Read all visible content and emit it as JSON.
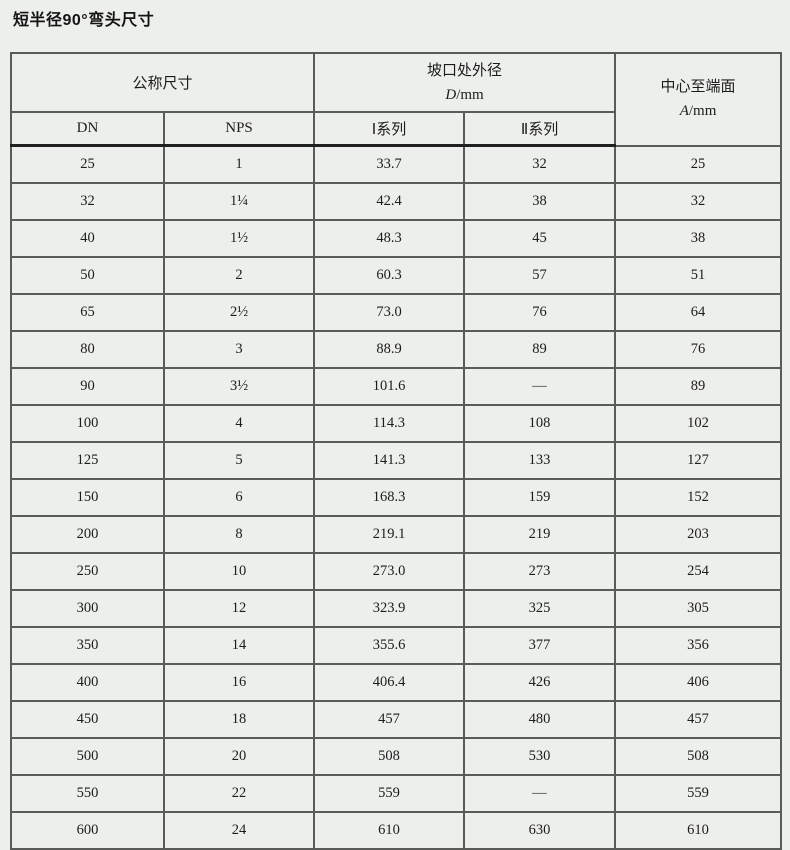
{
  "page": {
    "title": "短半径90°弯头尺寸"
  },
  "table": {
    "header": {
      "nominal_size": "公称尺寸",
      "dn": "DN",
      "nps": "NPS",
      "od_title": "坡口处外径",
      "od_var": "D",
      "od_unit": "/mm",
      "series1": "Ⅰ系列",
      "series2": "Ⅱ系列",
      "center_title": "中心至端面",
      "center_var": "A",
      "center_unit": "/mm"
    },
    "columns": [
      "DN",
      "NPS",
      "Ⅰ系列",
      "Ⅱ系列",
      "A/mm"
    ],
    "rows": [
      [
        "25",
        "1",
        "33.7",
        "32",
        "25"
      ],
      [
        "32",
        "1¼",
        "42.4",
        "38",
        "32"
      ],
      [
        "40",
        "1½",
        "48.3",
        "45",
        "38"
      ],
      [
        "50",
        "2",
        "60.3",
        "57",
        "51"
      ],
      [
        "65",
        "2½",
        "73.0",
        "76",
        "64"
      ],
      [
        "80",
        "3",
        "88.9",
        "89",
        "76"
      ],
      [
        "90",
        "3½",
        "101.6",
        "—",
        "89"
      ],
      [
        "100",
        "4",
        "114.3",
        "108",
        "102"
      ],
      [
        "125",
        "5",
        "141.3",
        "133",
        "127"
      ],
      [
        "150",
        "6",
        "168.3",
        "159",
        "152"
      ],
      [
        "200",
        "8",
        "219.1",
        "219",
        "203"
      ],
      [
        "250",
        "10",
        "273.0",
        "273",
        "254"
      ],
      [
        "300",
        "12",
        "323.9",
        "325",
        "305"
      ],
      [
        "350",
        "14",
        "355.6",
        "377",
        "356"
      ],
      [
        "400",
        "16",
        "406.4",
        "426",
        "406"
      ],
      [
        "450",
        "18",
        "457",
        "480",
        "457"
      ],
      [
        "500",
        "20",
        "508",
        "530",
        "508"
      ],
      [
        "550",
        "22",
        "559",
        "—",
        "559"
      ],
      [
        "600",
        "24",
        "610",
        "630",
        "610"
      ]
    ]
  }
}
